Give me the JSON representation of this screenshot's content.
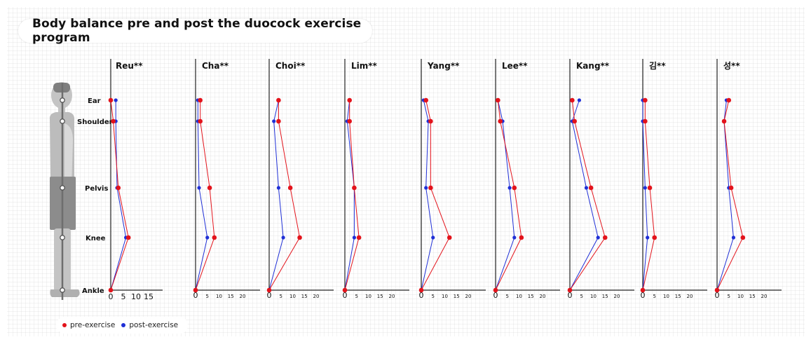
{
  "title": "Body balance pre and post the duocock exercise program",
  "legend": {
    "pre_label": "pre-exercise",
    "post_label": "post-exercise"
  },
  "colors": {
    "pre": "#e3131b",
    "post": "#1f2fd6"
  },
  "landmarks": [
    "Ear",
    "Shoulder",
    "Pelvis",
    "Knee",
    "Ankle"
  ],
  "chart_data": {
    "type": "line",
    "orientation": "horizontal values, vertical landmarks",
    "y_categories": [
      "Ear",
      "Shoulder",
      "Pelvis",
      "Knee",
      "Ankle"
    ],
    "first_panel_ticks": [
      "0",
      "5",
      "10",
      "15"
    ],
    "other_panel_ticks": [
      "0",
      "5",
      "10",
      "15",
      "20"
    ],
    "panels": [
      {
        "name": "Reu**",
        "xlim": [
          0,
          15
        ],
        "pre": [
          0,
          1,
          3,
          7,
          0
        ],
        "post": [
          2,
          2,
          2.5,
          6,
          0
        ]
      },
      {
        "name": "Cha**",
        "xlim": [
          0,
          20
        ],
        "pre": [
          2,
          2,
          6,
          8,
          0
        ],
        "post": [
          1,
          1,
          1.5,
          5,
          0
        ]
      },
      {
        "name": "Choi**",
        "xlim": [
          0,
          20
        ],
        "pre": [
          4,
          4,
          9,
          13,
          0
        ],
        "post": [
          4,
          2,
          4,
          6,
          0
        ]
      },
      {
        "name": "Lim**",
        "xlim": [
          0,
          20
        ],
        "pre": [
          2,
          2,
          4,
          6,
          0
        ],
        "post": [
          2,
          1,
          4,
          4,
          0
        ]
      },
      {
        "name": "Yang**",
        "xlim": [
          0,
          20
        ],
        "pre": [
          2,
          4,
          4,
          12,
          0
        ],
        "post": [
          1,
          3,
          2,
          5,
          0
        ]
      },
      {
        "name": "Lee**",
        "xlim": [
          0,
          20
        ],
        "pre": [
          1,
          2,
          8,
          11,
          0
        ],
        "post": [
          1,
          3,
          6,
          8,
          0
        ]
      },
      {
        "name": "Kang**",
        "xlim": [
          0,
          20
        ],
        "pre": [
          1,
          2,
          9,
          15,
          0
        ],
        "post": [
          4,
          1,
          7,
          12,
          0
        ]
      },
      {
        "name": "김**",
        "xlim": [
          0,
          20
        ],
        "pre": [
          1,
          1,
          3,
          5,
          0
        ],
        "post": [
          0,
          0,
          1,
          2,
          0
        ]
      },
      {
        "name": "성**",
        "xlim": [
          0,
          20
        ],
        "pre": [
          5,
          3,
          6,
          11,
          0
        ],
        "post": [
          4,
          3,
          5,
          7,
          0
        ]
      }
    ]
  }
}
